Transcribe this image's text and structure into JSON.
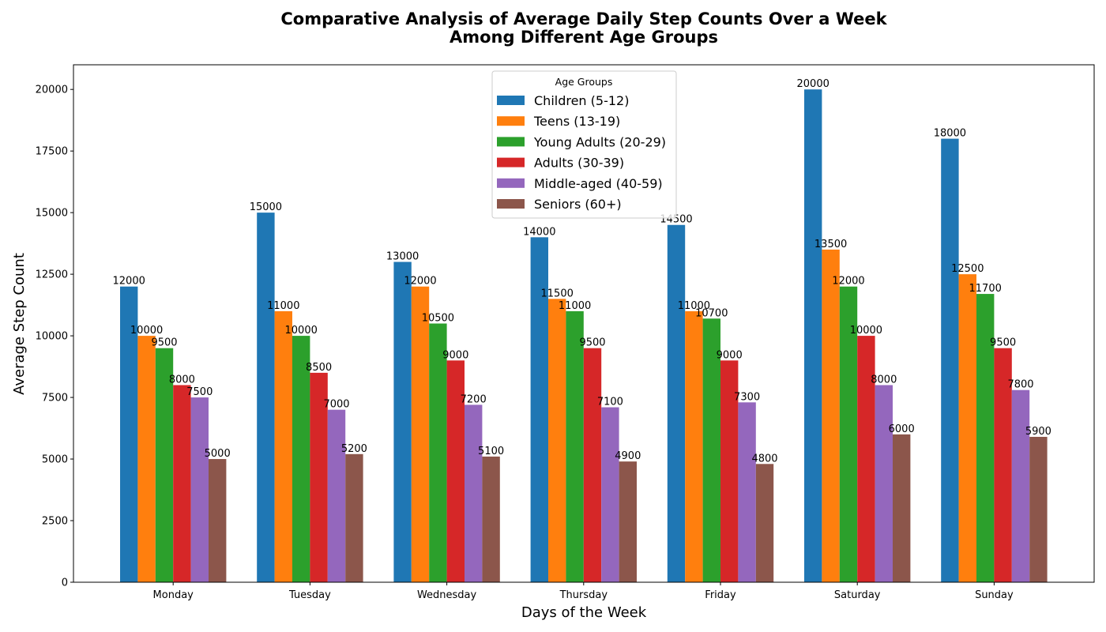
{
  "chart_data": {
    "type": "bar",
    "title_lines": [
      "Comparative Analysis of Average Daily Step Counts Over a Week",
      "Among Different Age Groups"
    ],
    "xlabel": "Days of the Week",
    "ylabel": "Average Step Count",
    "categories": [
      "Monday",
      "Tuesday",
      "Wednesday",
      "Thursday",
      "Friday",
      "Saturday",
      "Sunday"
    ],
    "ylim": [
      0,
      21000
    ],
    "yticks": [
      0,
      2500,
      5000,
      7500,
      10000,
      12500,
      15000,
      17500,
      20000
    ],
    "grid": false,
    "legend": {
      "title": "Age Groups",
      "placement": "top-center"
    },
    "series": [
      {
        "name": "Children (5-12)",
        "color": "#1f77b4",
        "values": [
          12000,
          15000,
          13000,
          14000,
          14500,
          20000,
          18000
        ]
      },
      {
        "name": "Teens (13-19)",
        "color": "#ff7f0e",
        "values": [
          10000,
          11000,
          12000,
          11500,
          11000,
          13500,
          12500
        ]
      },
      {
        "name": "Young Adults (20-29)",
        "color": "#2ca02c",
        "values": [
          9500,
          10000,
          10500,
          11000,
          10700,
          12000,
          11700
        ]
      },
      {
        "name": "Adults (30-39)",
        "color": "#d62728",
        "values": [
          8000,
          8500,
          9000,
          9500,
          9000,
          10000,
          9500
        ]
      },
      {
        "name": "Middle-aged (40-59)",
        "color": "#9467bd",
        "values": [
          7500,
          7000,
          7200,
          7100,
          7300,
          8000,
          7800
        ]
      },
      {
        "name": "Seniors (60+)",
        "color": "#8c564b",
        "values": [
          5000,
          5200,
          5100,
          4900,
          4800,
          6000,
          5900
        ]
      }
    ]
  }
}
